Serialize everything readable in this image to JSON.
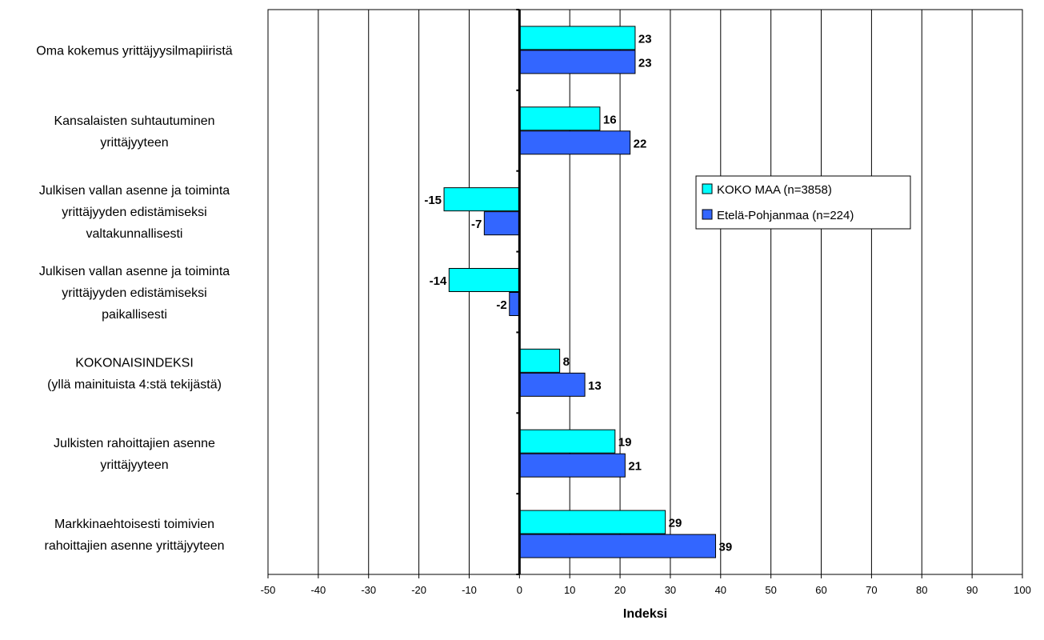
{
  "chart_data": {
    "type": "bar",
    "orientation": "horizontal",
    "categories": [
      [
        "Oma kokemus yrittäjyysilmapiiristä"
      ],
      [
        "Kansalaisten suhtautuminen",
        "yrittäjyyteen"
      ],
      [
        "Julkisen vallan asenne ja toiminta",
        "yrittäjyyden edistämiseksi",
        "valtakunnallisesti"
      ],
      [
        "Julkisen vallan asenne ja toiminta",
        "yrittäjyyden edistämiseksi",
        "paikallisesti"
      ],
      [
        "KOKONAISINDEKSI",
        "(yllä mainituista 4:stä tekijästä)"
      ],
      [
        "Julkisten rahoittajien asenne",
        "yrittäjyyteen"
      ],
      [
        "Markkinaehtoisesti toimivien",
        "rahoittajien asenne yrittäjyyteen"
      ]
    ],
    "series": [
      {
        "name": "KOKO MAA (n=3858)",
        "color": "#00FFFF",
        "values": [
          23,
          16,
          -15,
          -14,
          8,
          19,
          29
        ]
      },
      {
        "name": "Etelä-Pohjanmaa (n=224)",
        "color": "#3366FF",
        "values": [
          23,
          22,
          -7,
          -2,
          13,
          21,
          39
        ]
      }
    ],
    "xlabel": "Indeksi",
    "xlim": [
      -50,
      100
    ],
    "xticks": [
      -50,
      -40,
      -30,
      -20,
      -10,
      0,
      10,
      20,
      30,
      40,
      50,
      60,
      70,
      80,
      90,
      100
    ],
    "grid": true,
    "legend_position": "right"
  }
}
